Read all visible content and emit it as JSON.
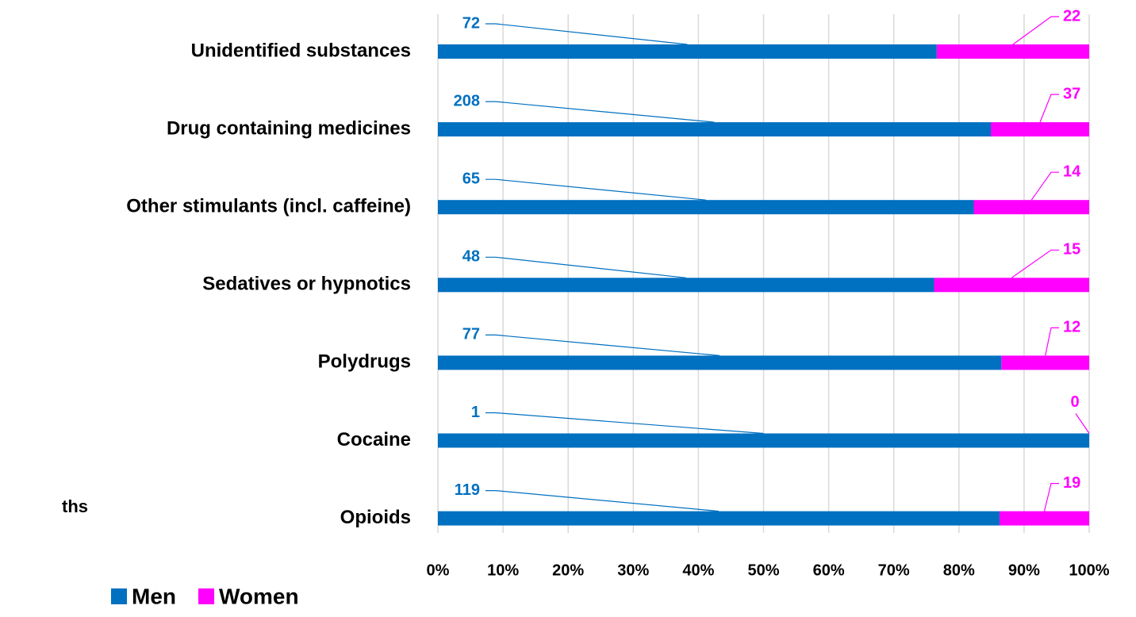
{
  "chart_data": {
    "type": "bar",
    "orientation": "horizontal",
    "stacked": "percent",
    "annotation": "ths",
    "categories": [
      "Unidentified substances",
      "Drug containing medicines",
      "Other stimulants (incl. caffeine)",
      "Sedatives or hypnotics",
      "Polydrugs",
      "Cocaine",
      "Opioids"
    ],
    "series": [
      {
        "name": "Men",
        "color": "#0070c0",
        "values": [
          72,
          208,
          65,
          48,
          77,
          1,
          119
        ]
      },
      {
        "name": "Women",
        "color": "#ff00ff",
        "values": [
          22,
          37,
          14,
          15,
          12,
          0,
          19
        ]
      }
    ],
    "xlim": [
      0,
      100
    ],
    "xticks": [
      {
        "value": 0,
        "label": "0%"
      },
      {
        "value": 10,
        "label": "10%"
      },
      {
        "value": 20,
        "label": "20%"
      },
      {
        "value": 30,
        "label": "30%"
      },
      {
        "value": 40,
        "label": "40%"
      },
      {
        "value": 50,
        "label": "50%"
      },
      {
        "value": 60,
        "label": "60%"
      },
      {
        "value": 70,
        "label": "70%"
      },
      {
        "value": 80,
        "label": "80%"
      },
      {
        "value": 90,
        "label": "90%"
      },
      {
        "value": 100,
        "label": "100%"
      }
    ],
    "grid": true,
    "legend": "bottom-left"
  }
}
